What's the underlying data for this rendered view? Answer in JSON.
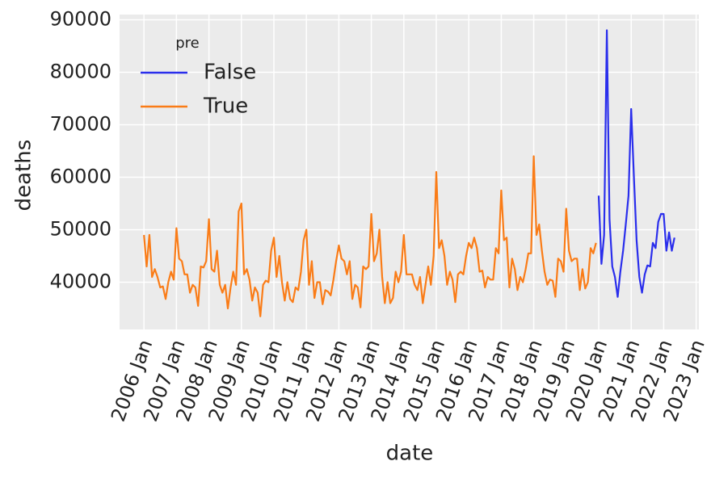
{
  "chart_data": {
    "type": "line",
    "x_label": "date",
    "y_label": "deaths",
    "legend_title": "pre",
    "legend": "upper left",
    "grid": true,
    "xlim": [
      "2005-04",
      "2023-02"
    ],
    "xticks": [
      {
        "value": "2006-01",
        "label": "2006 Jan"
      },
      {
        "value": "2007-01",
        "label": "2007 Jan"
      },
      {
        "value": "2008-01",
        "label": "2008 Jan"
      },
      {
        "value": "2009-01",
        "label": "2009 Jan"
      },
      {
        "value": "2010-01",
        "label": "2010 Jan"
      },
      {
        "value": "2011-01",
        "label": "2011 Jan"
      },
      {
        "value": "2012-01",
        "label": "2012 Jan"
      },
      {
        "value": "2013-01",
        "label": "2013 Jan"
      },
      {
        "value": "2014-01",
        "label": "2014 Jan"
      },
      {
        "value": "2015-01",
        "label": "2015 Jan"
      },
      {
        "value": "2016-01",
        "label": "2016 Jan"
      },
      {
        "value": "2017-01",
        "label": "2017 Jan"
      },
      {
        "value": "2018-01",
        "label": "2018 Jan"
      },
      {
        "value": "2019-01",
        "label": "2019 Jan"
      },
      {
        "value": "2020-01",
        "label": "2020 Jan"
      },
      {
        "value": "2021-01",
        "label": "2021 Jan"
      },
      {
        "value": "2022-01",
        "label": "2022 Jan"
      },
      {
        "value": "2023-01",
        "label": "2023 Jan"
      }
    ],
    "ylim": [
      31000,
      91000
    ],
    "yticks": [
      40000,
      50000,
      60000,
      70000,
      80000,
      90000
    ],
    "series": [
      {
        "name": "False",
        "color": "#2a2eec",
        "x": [
          "2020-01",
          "2020-02",
          "2020-03",
          "2020-04",
          "2020-05",
          "2020-06",
          "2020-07",
          "2020-08",
          "2020-09",
          "2020-10",
          "2020-11",
          "2020-12",
          "2021-01",
          "2021-02",
          "2021-03",
          "2021-04",
          "2021-05",
          "2021-06",
          "2021-07",
          "2021-08",
          "2021-09",
          "2021-10",
          "2021-11",
          "2021-12",
          "2022-01",
          "2022-02",
          "2022-03",
          "2022-04",
          "2022-05"
        ],
        "values": [
          56500,
          43500,
          49000,
          88000,
          52000,
          43000,
          41000,
          37200,
          42000,
          46000,
          51000,
          56500,
          73000,
          60000,
          48000,
          41000,
          38000,
          41500,
          43200,
          43000,
          47500,
          46500,
          51500,
          53000,
          53000,
          46000,
          49500,
          46000,
          48500
        ]
      },
      {
        "name": "True",
        "color": "#fa7c17",
        "x": [
          "2006-01",
          "2006-02",
          "2006-03",
          "2006-04",
          "2006-05",
          "2006-06",
          "2006-07",
          "2006-08",
          "2006-09",
          "2006-10",
          "2006-11",
          "2006-12",
          "2007-01",
          "2007-02",
          "2007-03",
          "2007-04",
          "2007-05",
          "2007-06",
          "2007-07",
          "2007-08",
          "2007-09",
          "2007-10",
          "2007-11",
          "2007-12",
          "2008-01",
          "2008-02",
          "2008-03",
          "2008-04",
          "2008-05",
          "2008-06",
          "2008-07",
          "2008-08",
          "2008-09",
          "2008-10",
          "2008-11",
          "2008-12",
          "2009-01",
          "2009-02",
          "2009-03",
          "2009-04",
          "2009-05",
          "2009-06",
          "2009-07",
          "2009-08",
          "2009-09",
          "2009-10",
          "2009-11",
          "2009-12",
          "2010-01",
          "2010-02",
          "2010-03",
          "2010-04",
          "2010-05",
          "2010-06",
          "2010-07",
          "2010-08",
          "2010-09",
          "2010-10",
          "2010-11",
          "2010-12",
          "2011-01",
          "2011-02",
          "2011-03",
          "2011-04",
          "2011-05",
          "2011-06",
          "2011-07",
          "2011-08",
          "2011-09",
          "2011-10",
          "2011-11",
          "2011-12",
          "2012-01",
          "2012-02",
          "2012-03",
          "2012-04",
          "2012-05",
          "2012-06",
          "2012-07",
          "2012-08",
          "2012-09",
          "2012-10",
          "2012-11",
          "2012-12",
          "2013-01",
          "2013-02",
          "2013-03",
          "2013-04",
          "2013-05",
          "2013-06",
          "2013-07",
          "2013-08",
          "2013-09",
          "2013-10",
          "2013-11",
          "2013-12",
          "2014-01",
          "2014-02",
          "2014-03",
          "2014-04",
          "2014-05",
          "2014-06",
          "2014-07",
          "2014-08",
          "2014-09",
          "2014-10",
          "2014-11",
          "2014-12",
          "2015-01",
          "2015-02",
          "2015-03",
          "2015-04",
          "2015-05",
          "2015-06",
          "2015-07",
          "2015-08",
          "2015-09",
          "2015-10",
          "2015-11",
          "2015-12",
          "2016-01",
          "2016-02",
          "2016-03",
          "2016-04",
          "2016-05",
          "2016-06",
          "2016-07",
          "2016-08",
          "2016-09",
          "2016-10",
          "2016-11",
          "2016-12",
          "2017-01",
          "2017-02",
          "2017-03",
          "2017-04",
          "2017-05",
          "2017-06",
          "2017-07",
          "2017-08",
          "2017-09",
          "2017-10",
          "2017-11",
          "2017-12",
          "2018-01",
          "2018-02",
          "2018-03",
          "2018-04",
          "2018-05",
          "2018-06",
          "2018-07",
          "2018-08",
          "2018-09",
          "2018-10",
          "2018-11",
          "2018-12",
          "2019-01",
          "2019-02",
          "2019-03",
          "2019-04",
          "2019-05",
          "2019-06",
          "2019-07",
          "2019-08",
          "2019-09",
          "2019-10",
          "2019-11",
          "2019-12"
        ],
        "values": [
          49000,
          43000,
          49000,
          41000,
          42500,
          41000,
          39000,
          39200,
          36800,
          40000,
          42000,
          40500,
          50300,
          44500,
          44000,
          41500,
          41500,
          38000,
          39500,
          39000,
          35500,
          43000,
          42800,
          44000,
          52000,
          42500,
          42000,
          46000,
          39500,
          38000,
          39500,
          35000,
          39000,
          42000,
          39500,
          53500,
          55000,
          41500,
          42500,
          40500,
          36500,
          39000,
          38000,
          33500,
          39500,
          40300,
          40000,
          46000,
          48500,
          41000,
          45000,
          40000,
          36500,
          40000,
          36800,
          36200,
          39000,
          38500,
          42000,
          48000,
          50000,
          39500,
          44000,
          37000,
          40000,
          40000,
          35800,
          38500,
          38200,
          37500,
          40500,
          44000,
          47000,
          44500,
          44000,
          41500,
          44000,
          36800,
          39500,
          39000,
          35200,
          43000,
          42500,
          43000,
          53000,
          44000,
          45500,
          50000,
          41000,
          36000,
          40000,
          36000,
          37000,
          42000,
          40000,
          42000,
          49000,
          41500,
          41500,
          41500,
          39500,
          38500,
          41000,
          36000,
          39500,
          43000,
          39500,
          45000,
          61000,
          46500,
          48000,
          45000,
          39500,
          42000,
          40500,
          36200,
          41500,
          42000,
          41500,
          45000,
          47500,
          46500,
          48500,
          46500,
          42000,
          42200,
          39000,
          41000,
          40500,
          40500,
          46500,
          45500,
          57500,
          48000,
          48500,
          39000,
          44500,
          42500,
          38500,
          41000,
          40000,
          42500,
          45500,
          45500,
          64000,
          49000,
          51000,
          46000,
          42000,
          39500,
          40500,
          40300,
          37200,
          44500,
          44000,
          42000,
          54000,
          46000,
          44000,
          44500,
          44500,
          38500,
          42500,
          38800,
          40000,
          46500,
          45500,
          47500
        ]
      }
    ]
  }
}
